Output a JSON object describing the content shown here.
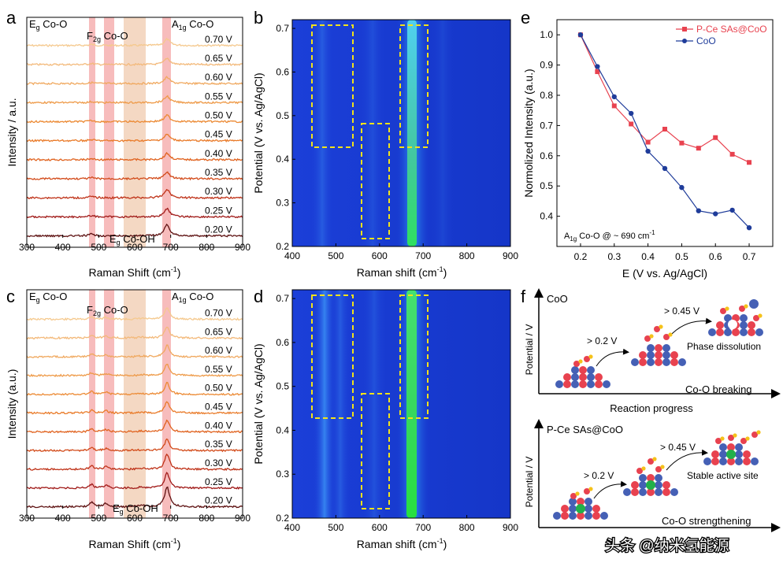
{
  "panels": {
    "a": {
      "letter": "a",
      "xlabel": "Raman Shift (cm",
      "xlabel_sup": "-1",
      "xlabel_end": ")",
      "ylabel": "Intensity / a.u.",
      "xticks": [
        "300",
        "400",
        "500",
        "600",
        "700",
        "800",
        "900"
      ],
      "band_eg": "E",
      "band_eg_sub": "g",
      "band_eg_tail": " Co-O",
      "band_f2g": "F",
      "band_f2g_sub": "2g",
      "band_f2g_tail": " Co-O",
      "band_a1g": "A",
      "band_a1g_sub": "1g",
      "band_a1g_tail": " Co-O",
      "band_egoh": "E",
      "band_egoh_sub": "g",
      "band_egoh_tail": " Co-OH",
      "potentials": [
        "0.70 V",
        "0.65 V",
        "0.60 V",
        "0.55 V",
        "0.50 V",
        "0.45 V",
        "0.40 V",
        "0.35 V",
        "0.30 V",
        "0.25 V",
        "0.20 V"
      ]
    },
    "c": {
      "letter": "c",
      "xlabel": "Raman Shift (cm",
      "xlabel_sup": "-1",
      "xlabel_end": ")",
      "ylabel": "Intensity (a.u.)",
      "xticks": [
        "300",
        "400",
        "500",
        "600",
        "700",
        "800",
        "900"
      ],
      "band_eg": "E",
      "band_eg_sub": "g",
      "band_eg_tail": " Co-O",
      "band_f2g": "F",
      "band_f2g_sub": "2g",
      "band_f2g_tail": " Co-O",
      "band_a1g": "A",
      "band_a1g_sub": "1g",
      "band_a1g_tail": " Co-O",
      "band_egoh": "E",
      "band_egoh_sub": "g",
      "band_egoh_tail": " Co-OH",
      "potentials": [
        "0.70 V",
        "0.65 V",
        "0.60 V",
        "0.55 V",
        "0.50 V",
        "0.45 V",
        "0.40 V",
        "0.35 V",
        "0.30 V",
        "0.25 V",
        "0.20 V"
      ]
    },
    "b": {
      "letter": "b",
      "xlabel": "Raman shift (cm",
      "xlabel_sup": "-1",
      "xlabel_end": ")",
      "ylabel": "Potential (V vs. Ag/AgCl)",
      "xticks": [
        "400",
        "500",
        "600",
        "700",
        "800",
        "900"
      ],
      "yticks": [
        "0.2",
        "0.3",
        "0.4",
        "0.5",
        "0.6",
        "0.7"
      ]
    },
    "d": {
      "letter": "d",
      "xlabel": "Raman shift (cm",
      "xlabel_sup": "-1",
      "xlabel_end": ")",
      "ylabel": "Potential (V vs. Ag/AgCl)",
      "xticks": [
        "400",
        "500",
        "600",
        "700",
        "800",
        "900"
      ],
      "yticks": [
        "0.2",
        "0.3",
        "0.4",
        "0.5",
        "0.6",
        "0.7"
      ]
    },
    "e": {
      "letter": "e",
      "annotation": "A",
      "annotation_sub": "1g",
      "annotation_tail": " Co-O @ ~ 690 cm",
      "annotation_sup": "-1"
    },
    "f": {
      "letter": "f",
      "top_title": "CoO",
      "top_ylabel": "Potential / V",
      "top_step1": "> 0.2 V",
      "top_step2": "> 0.45 V",
      "top_result": "Phase dissolution",
      "top_caption": "Co-O breaking",
      "top_xlabel": "Reaction progress",
      "bottom_title": "P-Ce SAs@CoO",
      "bottom_ylabel": "Potential / V",
      "bottom_step1": "> 0.2 V",
      "bottom_step2": "> 0.45 V",
      "bottom_result": "Stable active site",
      "bottom_caption": "Co-O strengthening"
    }
  },
  "watermark": "头条 @纳米氢能源",
  "chart_data": {
    "type": "line",
    "title": "",
    "xlabel": "E (V vs. Ag/AgCl)",
    "ylabel": "Normolized Intensity (a.u.)",
    "xlim": [
      0.13,
      0.77
    ],
    "ylim": [
      0.3,
      1.05
    ],
    "xticks": [
      0.2,
      0.3,
      0.4,
      0.5,
      0.6,
      0.7
    ],
    "yticks": [
      0.4,
      0.5,
      0.6,
      0.7,
      0.8,
      0.9,
      1.0
    ],
    "legend_position": "top-right",
    "x": [
      0.2,
      0.25,
      0.3,
      0.35,
      0.4,
      0.45,
      0.5,
      0.55,
      0.6,
      0.65,
      0.7
    ],
    "series": [
      {
        "name": "P-Ce SAs@CoO",
        "color": "#e8424f",
        "marker": "square",
        "values": [
          1.0,
          0.878,
          0.765,
          0.705,
          0.645,
          0.688,
          0.642,
          0.625,
          0.66,
          0.605,
          0.578
        ]
      },
      {
        "name": "CoO",
        "color": "#1f3c9a",
        "marker": "circle",
        "values": [
          1.0,
          0.895,
          0.795,
          0.74,
          0.615,
          0.558,
          0.495,
          0.418,
          0.408,
          0.42,
          0.362
        ]
      }
    ]
  }
}
